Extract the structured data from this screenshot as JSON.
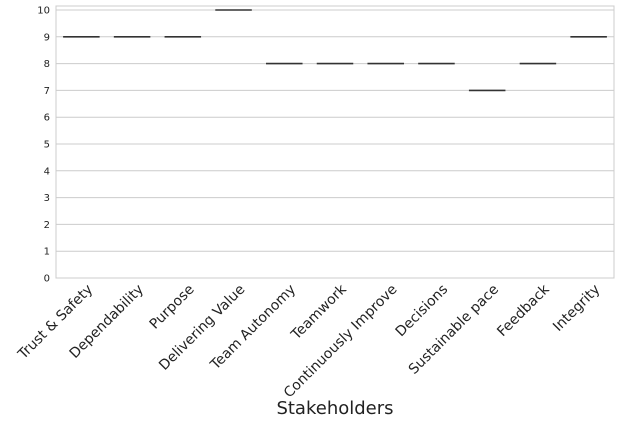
{
  "chart_data": {
    "type": "box",
    "categories": [
      "Trust & Safety",
      "Dependability",
      "Purpose",
      "Delivering Value",
      "Team Autonomy",
      "Teamwork",
      "Continuously Improve",
      "Decisions",
      "Sustainable pace",
      "Feedback",
      "Integrity"
    ],
    "values": [
      9,
      9,
      9,
      10,
      8,
      8,
      8,
      8,
      7,
      8,
      9
    ],
    "xlabel": "Stakeholders",
    "ylabel": "",
    "ylim": [
      0,
      10
    ],
    "yticks": [
      0,
      1,
      2,
      3,
      4,
      5,
      6,
      7,
      8,
      9,
      10
    ],
    "grid": true,
    "legend": "none",
    "colors": {
      "grid": "#cccccc",
      "mark": "#333333",
      "text": "#222222"
    }
  }
}
